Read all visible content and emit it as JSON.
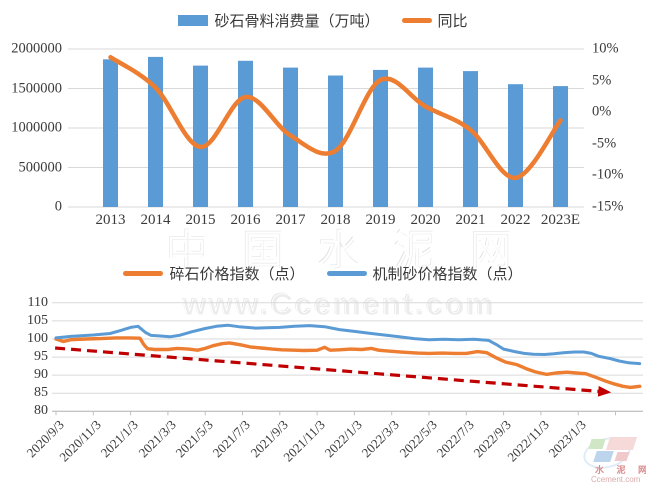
{
  "watermark": {
    "title": "中国水泥网",
    "url": "www.Ccement.com"
  },
  "logo": {
    "name": "水 泥 网",
    "site": "Ccement.com"
  },
  "colors": {
    "bar_blue": "#5B9BD5",
    "line_orange": "#ED7D31",
    "line_blue": "#5B9BD5",
    "trend_red": "#C00000",
    "grid": "#D9D9D9",
    "axis": "#BFBFBF",
    "text": "#3a3a3a"
  },
  "chart_data": [
    {
      "type": "bar",
      "legend": [
        {
          "label": "砂石骨料消费量（万吨）",
          "swatch": "bar",
          "color": "#5B9BD5"
        },
        {
          "label": "同比",
          "swatch": "line",
          "color": "#ED7D31"
        }
      ],
      "categories": [
        "2013",
        "2014",
        "2015",
        "2016",
        "2017",
        "2018",
        "2019",
        "2020",
        "2021",
        "2022",
        "2023E"
      ],
      "series": [
        {
          "name": "砂石骨料消费量（万吨）",
          "type": "bar",
          "axis": "left",
          "values": [
            1870000,
            1900000,
            1790000,
            1850000,
            1765000,
            1665000,
            1735000,
            1765000,
            1720000,
            1555000,
            1530000
          ]
        },
        {
          "name": "同比",
          "type": "line",
          "axis": "right",
          "values": [
            8.7,
            3.9,
            -5.5,
            2.4,
            -3.7,
            -6.1,
            5.1,
            0.9,
            -2.8,
            -10.4,
            -1.3
          ]
        }
      ],
      "y_left": {
        "min": 0,
        "max": 2000000,
        "ticks": [
          "2000000",
          "1500000",
          "1000000",
          "500000",
          "0"
        ]
      },
      "y_right": {
        "min": -15,
        "max": 10,
        "ticks": [
          "10%",
          "5%",
          "0%",
          "-5%",
          "-10%",
          "-15%"
        ],
        "unit": "%"
      },
      "grid": true,
      "legend_position": "top"
    },
    {
      "type": "line",
      "legend": [
        {
          "label": "碎石价格指数（点）",
          "swatch": "line",
          "color": "#ED7D31"
        },
        {
          "label": "机制砂价格指数（点）",
          "swatch": "line",
          "color": "#5B9BD5"
        }
      ],
      "x_ticks": [
        "2020/9/3",
        "2020/11/3",
        "2021/1/3",
        "2021/3/3",
        "2021/5/3",
        "2021/7/3",
        "2021/9/3",
        "2021/11/3",
        "2022/1/3",
        "2022/3/3",
        "2022/5/3",
        "2022/7/3",
        "2022/9/3",
        "2022/11/3",
        "2023/1/3"
      ],
      "months_per_tick": 2,
      "y": {
        "min": 80,
        "max": 110,
        "ticks": [
          "110",
          "105",
          "100",
          "95",
          "90",
          "85",
          "80"
        ]
      },
      "series": [
        {
          "name": "碎石价格指数（点）",
          "color": "#ED7D31",
          "points": [
            [
              0,
              100.0
            ],
            [
              0.4,
              99.3
            ],
            [
              0.8,
              99.8
            ],
            [
              1.6,
              100.0
            ],
            [
              2.4,
              100.1
            ],
            [
              3.2,
              100.3
            ],
            [
              3.9,
              100.3
            ],
            [
              4.5,
              100.2
            ],
            [
              4.7,
              98.5
            ],
            [
              4.9,
              97.3
            ],
            [
              5.3,
              97.1
            ],
            [
              6,
              97.1
            ],
            [
              6.5,
              97.4
            ],
            [
              7.1,
              97.2
            ],
            [
              7.6,
              96.9
            ],
            [
              8,
              97.4
            ],
            [
              8.4,
              98.1
            ],
            [
              8.9,
              98.7
            ],
            [
              9.3,
              98.9
            ],
            [
              9.9,
              98.4
            ],
            [
              10.4,
              97.8
            ],
            [
              11,
              97.5
            ],
            [
              11.6,
              97.2
            ],
            [
              12.1,
              97.0
            ],
            [
              12.8,
              96.9
            ],
            [
              13.3,
              96.8
            ],
            [
              14,
              96.9
            ],
            [
              14.4,
              97.7
            ],
            [
              14.7,
              96.9
            ],
            [
              15.2,
              97.0
            ],
            [
              15.8,
              97.2
            ],
            [
              16.4,
              97.1
            ],
            [
              16.9,
              97.4
            ],
            [
              17.3,
              96.9
            ],
            [
              18,
              96.6
            ],
            [
              18.7,
              96.3
            ],
            [
              19.4,
              96.1
            ],
            [
              20,
              96.0
            ],
            [
              20.7,
              96.1
            ],
            [
              21.4,
              96.0
            ],
            [
              22,
              96.0
            ],
            [
              22.6,
              96.5
            ],
            [
              23.1,
              96.2
            ],
            [
              23.6,
              94.8
            ],
            [
              24.1,
              93.6
            ],
            [
              24.7,
              92.9
            ],
            [
              25.2,
              91.8
            ],
            [
              25.7,
              90.9
            ],
            [
              26.3,
              90.2
            ],
            [
              26.8,
              90.6
            ],
            [
              27.4,
              90.8
            ],
            [
              27.9,
              90.6
            ],
            [
              28.4,
              90.4
            ],
            [
              29,
              89.3
            ],
            [
              29.5,
              88.3
            ],
            [
              29.9,
              87.6
            ],
            [
              30.4,
              86.9
            ],
            [
              30.8,
              86.6
            ],
            [
              31.3,
              86.9
            ]
          ]
        },
        {
          "name": "机制砂价格指数（点）",
          "color": "#5B9BD5",
          "points": [
            [
              0,
              100.3
            ],
            [
              0.8,
              100.7
            ],
            [
              2,
              101.1
            ],
            [
              2.9,
              101.5
            ],
            [
              3.5,
              102.4
            ],
            [
              4,
              103.2
            ],
            [
              4.4,
              103.5
            ],
            [
              4.8,
              101.8
            ],
            [
              5.1,
              101.0
            ],
            [
              5.7,
              100.8
            ],
            [
              6.1,
              100.6
            ],
            [
              6.6,
              101.0
            ],
            [
              7.3,
              102.0
            ],
            [
              8,
              102.9
            ],
            [
              8.6,
              103.5
            ],
            [
              9.2,
              103.8
            ],
            [
              9.8,
              103.4
            ],
            [
              10.7,
              103.0
            ],
            [
              11.3,
              103.1
            ],
            [
              12,
              103.2
            ],
            [
              12.8,
              103.5
            ],
            [
              13.6,
              103.7
            ],
            [
              14.4,
              103.4
            ],
            [
              15.2,
              102.6
            ],
            [
              16,
              102.1
            ],
            [
              16.8,
              101.6
            ],
            [
              17.6,
              101.1
            ],
            [
              18.4,
              100.6
            ],
            [
              19.2,
              100.1
            ],
            [
              20,
              99.8
            ],
            [
              20.8,
              99.9
            ],
            [
              21.6,
              99.8
            ],
            [
              22.4,
              99.9
            ],
            [
              23.2,
              99.6
            ],
            [
              23.6,
              98.5
            ],
            [
              24,
              97.2
            ],
            [
              24.6,
              96.5
            ],
            [
              25.1,
              96.0
            ],
            [
              25.6,
              95.8
            ],
            [
              26.2,
              95.7
            ],
            [
              26.7,
              95.9
            ],
            [
              27.2,
              96.2
            ],
            [
              27.8,
              96.4
            ],
            [
              28.3,
              96.4
            ],
            [
              28.7,
              96.0
            ],
            [
              29.1,
              95.2
            ],
            [
              29.7,
              94.6
            ],
            [
              30.2,
              93.9
            ],
            [
              30.7,
              93.4
            ],
            [
              31.3,
              93.2
            ]
          ]
        }
      ],
      "trendline": {
        "color": "#C00000",
        "style": "dashed",
        "arrow": true,
        "from": [
          -0.05,
          97.5
        ],
        "to": [
          29.6,
          85.3
        ]
      },
      "grid": true,
      "legend_position": "top"
    }
  ]
}
